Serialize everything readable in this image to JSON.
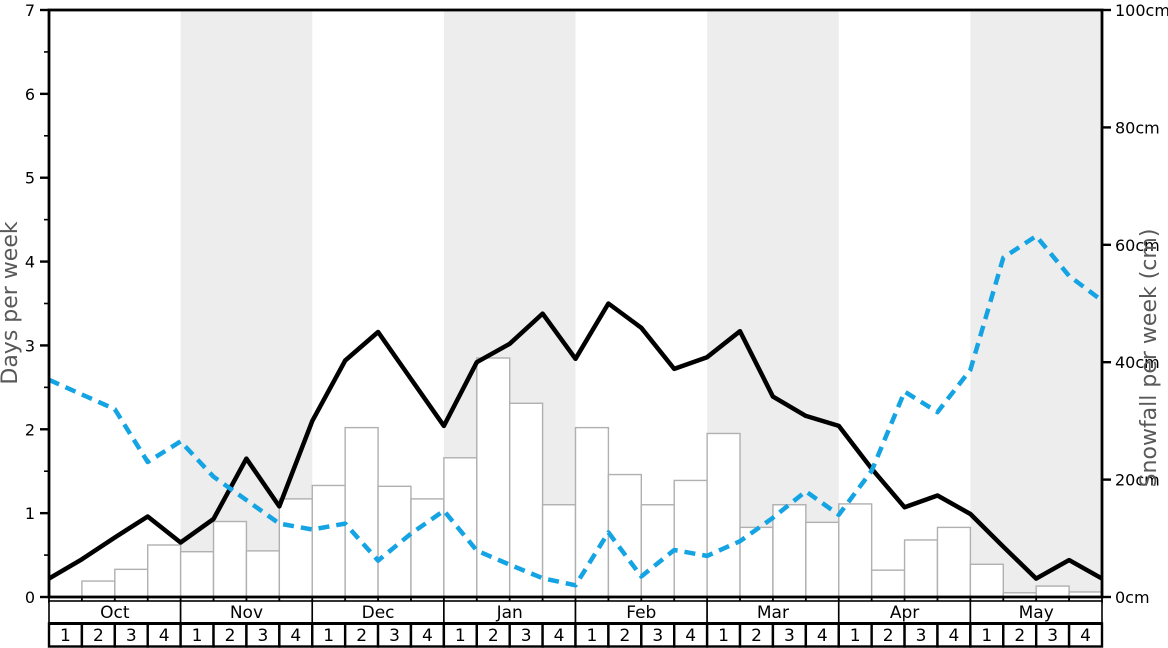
{
  "chart_data": {
    "type": "line+bar",
    "title": "",
    "months": [
      "Oct",
      "Nov",
      "Dec",
      "Jan",
      "Feb",
      "Mar",
      "Apr",
      "May"
    ],
    "week_labels": [
      "1",
      "2",
      "3",
      "4"
    ],
    "shaded_month_indices": [
      1,
      3,
      5,
      7
    ],
    "left_axis": {
      "label": "Days per week",
      "min": 0,
      "max": 7,
      "ticks": [
        0,
        1,
        2,
        3,
        4,
        5,
        6,
        7
      ],
      "minor_step": 0.5
    },
    "right_axis": {
      "label": "Snowfall per week (cm)",
      "min": 0,
      "max": 100,
      "ticks": [
        0,
        20,
        40,
        60,
        80,
        100
      ],
      "tick_labels": [
        "0cm",
        "20cm",
        "40cm",
        "60cm",
        "80cm",
        "100cm"
      ]
    },
    "series": [
      {
        "name": "days-of-snowfall-line",
        "type": "line",
        "style": "solid",
        "axis": "left",
        "color": "#000000",
        "x_note": "33 points at week boundaries from start of Oct to end of May",
        "values": [
          0.22,
          0.45,
          0.71,
          0.96,
          0.65,
          0.93,
          1.65,
          1.08,
          2.1,
          2.82,
          3.16,
          2.6,
          2.04,
          2.8,
          3.02,
          3.38,
          2.84,
          3.5,
          3.21,
          2.72,
          2.86,
          3.17,
          2.39,
          2.16,
          2.04,
          1.53,
          1.07,
          1.21,
          0.99,
          0.6,
          0.22,
          0.44,
          0.22
        ]
      },
      {
        "name": "snowfall-per-week-line",
        "type": "line",
        "style": "dashed",
        "axis": "right",
        "color": "#14a4e4",
        "x_note": "33 points at week boundaries, values in cm",
        "values": [
          37,
          34.5,
          32,
          23,
          26.5,
          20.5,
          16.5,
          12.5,
          11.5,
          12.5,
          6.2,
          10.8,
          14.7,
          7.9,
          5.5,
          3.2,
          2.0,
          11.0,
          3.5,
          8.0,
          7.0,
          9.5,
          13.5,
          18.0,
          14.0,
          21.5,
          35.0,
          31.5,
          38.7,
          57.8,
          61.5,
          54.7,
          50.5
        ]
      },
      {
        "name": "weekly-histogram-bars",
        "type": "bar",
        "axis": "left",
        "fill": "#ffffff",
        "edge": "#b0b0b0",
        "x_note": "32 bars, one per week cell",
        "values": [
          0,
          0.19,
          0.33,
          0.62,
          0.54,
          0.9,
          0.55,
          1.17,
          1.33,
          2.02,
          1.32,
          1.17,
          1.66,
          2.85,
          2.31,
          1.1,
          2.02,
          1.46,
          1.1,
          1.39,
          1.95,
          0.83,
          1.1,
          0.89,
          1.11,
          0.32,
          0.68,
          0.83,
          0.39,
          0.05,
          0.13,
          0.06
        ]
      }
    ],
    "band_color": "#ededed",
    "axis_label_color": "#595959",
    "legend": "none",
    "grid": "off"
  }
}
